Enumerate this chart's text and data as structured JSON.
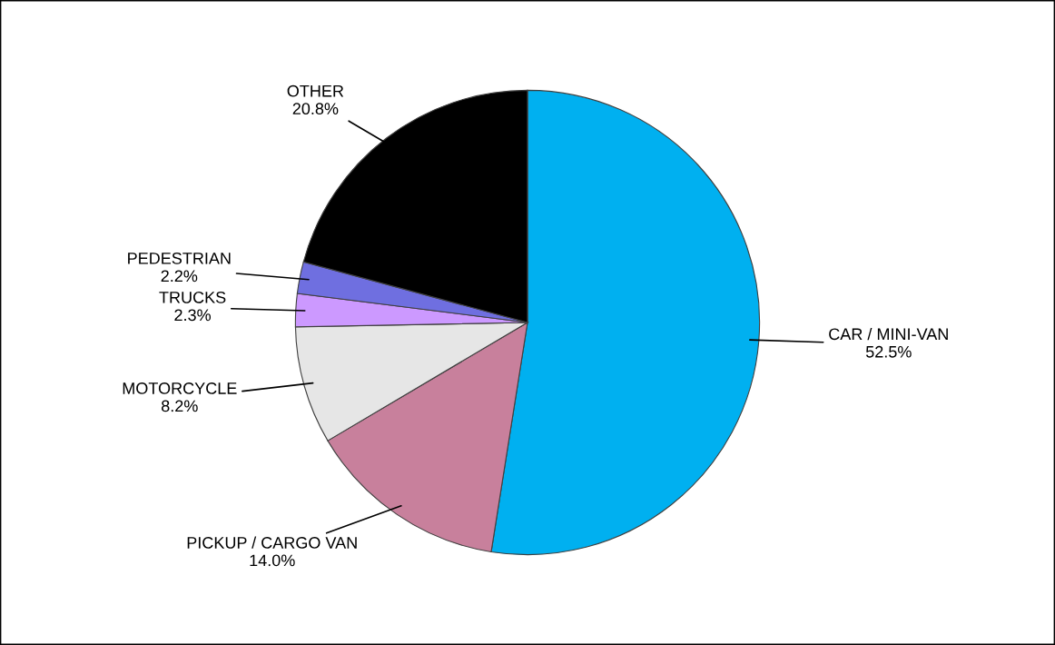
{
  "chart_data": {
    "type": "pie",
    "categories": [
      "CAR / MINI-VAN",
      "PICKUP / CARGO VAN",
      "MOTORCYCLE",
      "TRUCKS",
      "PEDESTRIAN",
      "OTHER"
    ],
    "values": [
      52.5,
      14.0,
      8.2,
      2.3,
      2.2,
      20.8
    ],
    "value_labels": [
      "52.5%",
      "14.0%",
      "8.2%",
      "2.3%",
      "2.2%",
      "20.8%"
    ],
    "colors": [
      "#00b0f0",
      "#c8809c",
      "#e6e6e6",
      "#cc99ff",
      "#6f6fe0",
      "#000000"
    ],
    "legend": false
  }
}
